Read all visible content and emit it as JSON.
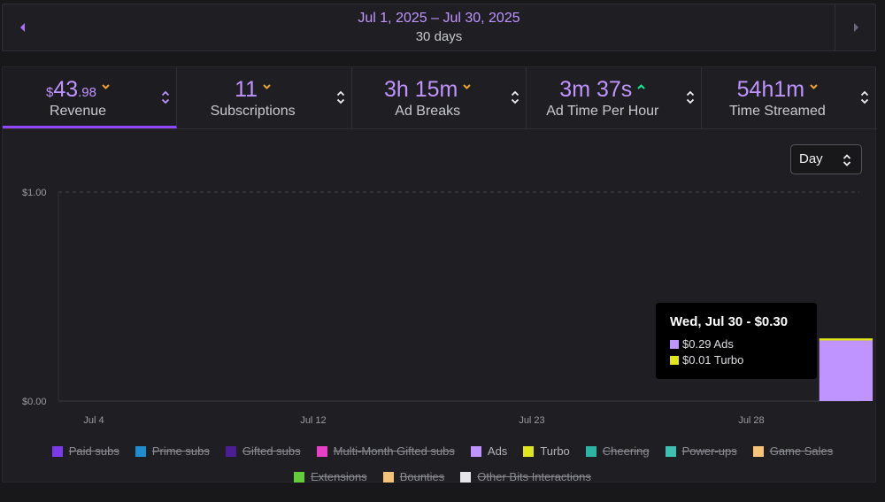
{
  "date_nav": {
    "range": "Jul 1, 2025 – Jul 30, 2025",
    "days": "30 days"
  },
  "colors": {
    "accent": "#bf94ff",
    "trend_up": "#00f593",
    "trend_down": "#f3a42d",
    "active_tab": "#9147ff"
  },
  "tabs": [
    {
      "value_prefix": "$",
      "value_main": "43",
      "value_cents": ".98",
      "label": "Revenue",
      "trend": "down",
      "active": true
    },
    {
      "value_main": "11",
      "label": "Subscriptions",
      "trend": "down"
    },
    {
      "value_main": "3h 15m",
      "label": "Ad Breaks",
      "trend": "down"
    },
    {
      "value_main": "3m 37s",
      "label": "Ad Time Per Hour",
      "trend": "up"
    },
    {
      "value_main": "54h1m",
      "label": "Time Streamed",
      "trend": "down"
    }
  ],
  "interval_select": {
    "value": "Day"
  },
  "chart_data": {
    "type": "bar",
    "stacked": true,
    "x_start": "2025-07-01",
    "x_end": "2025-07-30",
    "x_ticks": [
      "Jul 4",
      "Jul 12",
      "Jul 23",
      "Jul 28"
    ],
    "y_ticks": [
      "$1.00",
      "$0.00"
    ],
    "ylim": [
      0,
      1
    ],
    "grid": true,
    "series": [
      {
        "name": "Ads",
        "color": "#bf94ff",
        "points": [
          {
            "x": "2025-07-30",
            "y": 0.29
          }
        ]
      },
      {
        "name": "Turbo",
        "color": "#e1e51b",
        "points": [
          {
            "x": "2025-07-30",
            "y": 0.01
          }
        ]
      }
    ]
  },
  "tooltip": {
    "title": "Wed, Jul 30 - $0.30",
    "rows": [
      {
        "text": "$0.29 Ads",
        "color": "#bf94ff"
      },
      {
        "text": "$0.01 Turbo",
        "color": "#e1e51b"
      }
    ]
  },
  "legend": [
    {
      "label": "Paid subs",
      "color": "#7c3aed",
      "enabled": false
    },
    {
      "label": "Prime subs",
      "color": "#1f8ed0",
      "enabled": false
    },
    {
      "label": "Gifted subs",
      "color": "#4c1d95",
      "enabled": false
    },
    {
      "label": "Multi-Month Gifted subs",
      "color": "#e83fc8",
      "enabled": false
    },
    {
      "label": "Ads",
      "color": "#bf94ff",
      "enabled": true
    },
    {
      "label": "Turbo",
      "color": "#e1e51b",
      "enabled": true
    },
    {
      "label": "Cheering",
      "color": "#2bb3a3",
      "enabled": false
    },
    {
      "label": "Power-ups",
      "color": "#3fbfb0",
      "enabled": false
    },
    {
      "label": "Game Sales",
      "color": "#f7c376",
      "enabled": false
    },
    {
      "label": "Extensions",
      "color": "#62cd38",
      "enabled": false
    },
    {
      "label": "Bounties",
      "color": "#f5c178",
      "enabled": false
    },
    {
      "label": "Other Bits Interactions",
      "color": "#e5e5ea",
      "enabled": false
    }
  ]
}
